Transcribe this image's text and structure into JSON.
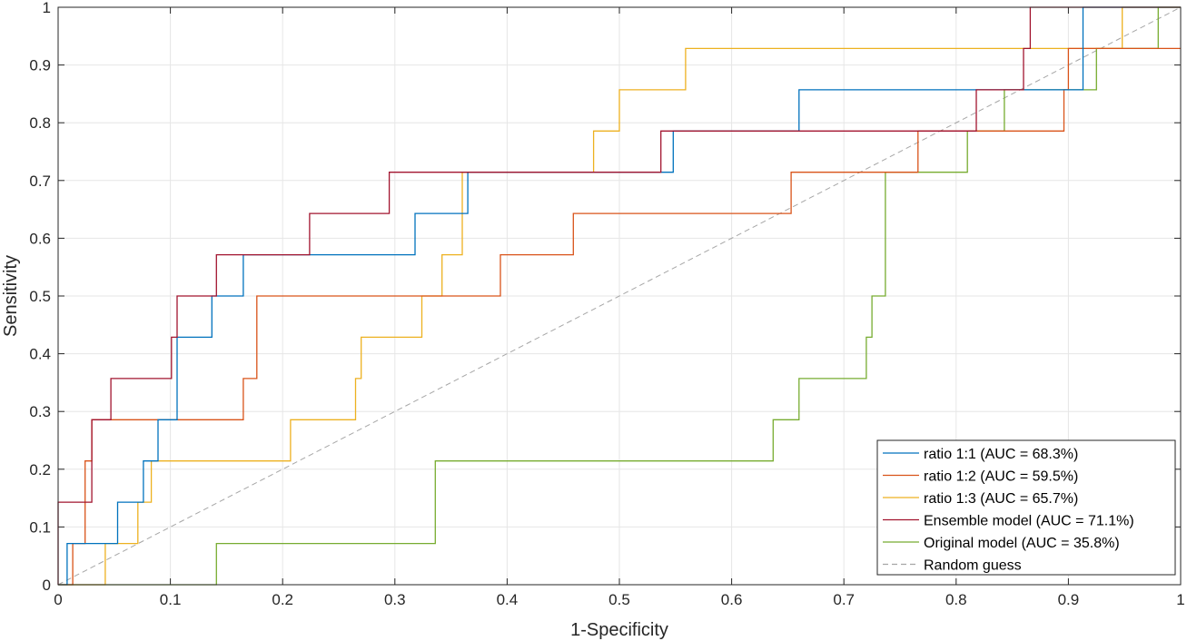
{
  "chart_data": {
    "type": "line",
    "title": "",
    "xlabel": "1-Specificity",
    "ylabel": "Sensitivity",
    "xlim": [
      0,
      1
    ],
    "ylim": [
      0,
      1
    ],
    "xticks": [
      "0",
      "0.1",
      "0.2",
      "0.3",
      "0.4",
      "0.5",
      "0.6",
      "0.7",
      "0.8",
      "0.9",
      "1"
    ],
    "yticks": [
      "0",
      "0.1",
      "0.2",
      "0.3",
      "0.4",
      "0.5",
      "0.6",
      "0.7",
      "0.8",
      "0.9",
      "1"
    ],
    "grid": true,
    "legend_position": "bottom-right",
    "series": [
      {
        "name": "ratio 1:1 (AUC = 68.3%)",
        "color": "#0072BD",
        "style": "solid",
        "x": [
          0,
          0.008,
          0.008,
          0.053,
          0.053,
          0.076,
          0.076,
          0.089,
          0.089,
          0.106,
          0.106,
          0.137,
          0.137,
          0.165,
          0.165,
          0.318,
          0.318,
          0.365,
          0.365,
          0.548,
          0.548,
          0.66,
          0.66,
          0.913,
          0.913,
          1.0
        ],
        "y": [
          0,
          0,
          0.0714,
          0.0714,
          0.1429,
          0.1429,
          0.2143,
          0.2143,
          0.2857,
          0.2857,
          0.4286,
          0.4286,
          0.5,
          0.5,
          0.5714,
          0.5714,
          0.6429,
          0.6429,
          0.7143,
          0.7143,
          0.7857,
          0.7857,
          0.8571,
          0.8571,
          1.0,
          1.0
        ]
      },
      {
        "name": "ratio 1:2 (AUC = 59.5%)",
        "color": "#D95319",
        "style": "solid",
        "x": [
          0,
          0.013,
          0.013,
          0.024,
          0.024,
          0.03,
          0.03,
          0.035,
          0.035,
          0.165,
          0.165,
          0.177,
          0.177,
          0.394,
          0.394,
          0.459,
          0.459,
          0.653,
          0.653,
          0.766,
          0.766,
          0.896,
          0.896,
          0.9,
          0.9,
          1.0
        ],
        "y": [
          0,
          0,
          0.0714,
          0.0714,
          0.2143,
          0.2143,
          0.2857,
          0.2857,
          0.2857,
          0.2857,
          0.3571,
          0.3571,
          0.5,
          0.5,
          0.5714,
          0.5714,
          0.6429,
          0.6429,
          0.7143,
          0.7143,
          0.7857,
          0.7857,
          0.8571,
          0.8571,
          0.9286,
          0.9286
        ]
      },
      {
        "name": "ratio 1:3 (AUC = 65.7%)",
        "color": "#EDB120",
        "style": "solid",
        "x": [
          0,
          0.042,
          0.042,
          0.071,
          0.071,
          0.083,
          0.083,
          0.207,
          0.207,
          0.265,
          0.265,
          0.27,
          0.27,
          0.324,
          0.324,
          0.342,
          0.342,
          0.36,
          0.36,
          0.477,
          0.477,
          0.5,
          0.5,
          0.559,
          0.559,
          0.948,
          0.948,
          1.0
        ],
        "y": [
          0,
          0,
          0.0714,
          0.0714,
          0.1429,
          0.1429,
          0.2143,
          0.2143,
          0.2857,
          0.2857,
          0.3571,
          0.3571,
          0.4286,
          0.4286,
          0.5,
          0.5,
          0.5714,
          0.5714,
          0.7143,
          0.7143,
          0.7857,
          0.7857,
          0.8571,
          0.8571,
          0.9286,
          0.9286,
          1.0,
          1.0
        ]
      },
      {
        "name": "Ensemble model (AUC = 71.1%)",
        "color": "#A2142F",
        "style": "solid",
        "x": [
          0,
          0.0,
          0.0,
          0.03,
          0.03,
          0.047,
          0.047,
          0.101,
          0.101,
          0.106,
          0.106,
          0.141,
          0.141,
          0.224,
          0.224,
          0.295,
          0.295,
          0.537,
          0.537,
          0.818,
          0.818,
          0.86,
          0.86,
          0.866,
          0.866,
          1.0
        ],
        "y": [
          0,
          0,
          0.1429,
          0.1429,
          0.2857,
          0.2857,
          0.3571,
          0.3571,
          0.4286,
          0.4286,
          0.5,
          0.5,
          0.5714,
          0.5714,
          0.6429,
          0.6429,
          0.7143,
          0.7143,
          0.7857,
          0.7857,
          0.8571,
          0.8571,
          0.9286,
          0.9286,
          1.0,
          1.0
        ]
      },
      {
        "name": "Original model (AUC = 35.8%)",
        "color": "#77AC30",
        "style": "solid",
        "x": [
          0,
          0.141,
          0.141,
          0.336,
          0.336,
          0.637,
          0.637,
          0.66,
          0.66,
          0.72,
          0.72,
          0.725,
          0.725,
          0.737,
          0.737,
          0.81,
          0.81,
          0.843,
          0.843,
          0.925,
          0.925,
          0.98,
          0.98,
          1.0
        ],
        "y": [
          0,
          0,
          0.0714,
          0.0714,
          0.2143,
          0.2143,
          0.2857,
          0.2857,
          0.3571,
          0.3571,
          0.4286,
          0.4286,
          0.5,
          0.5,
          0.7143,
          0.7143,
          0.7857,
          0.7857,
          0.8571,
          0.8571,
          0.9286,
          0.9286,
          1.0,
          1.0
        ]
      },
      {
        "name": "Random guess",
        "color": "#A6A6A6",
        "style": "dashed",
        "x": [
          0,
          1
        ],
        "y": [
          0,
          1
        ]
      }
    ]
  }
}
